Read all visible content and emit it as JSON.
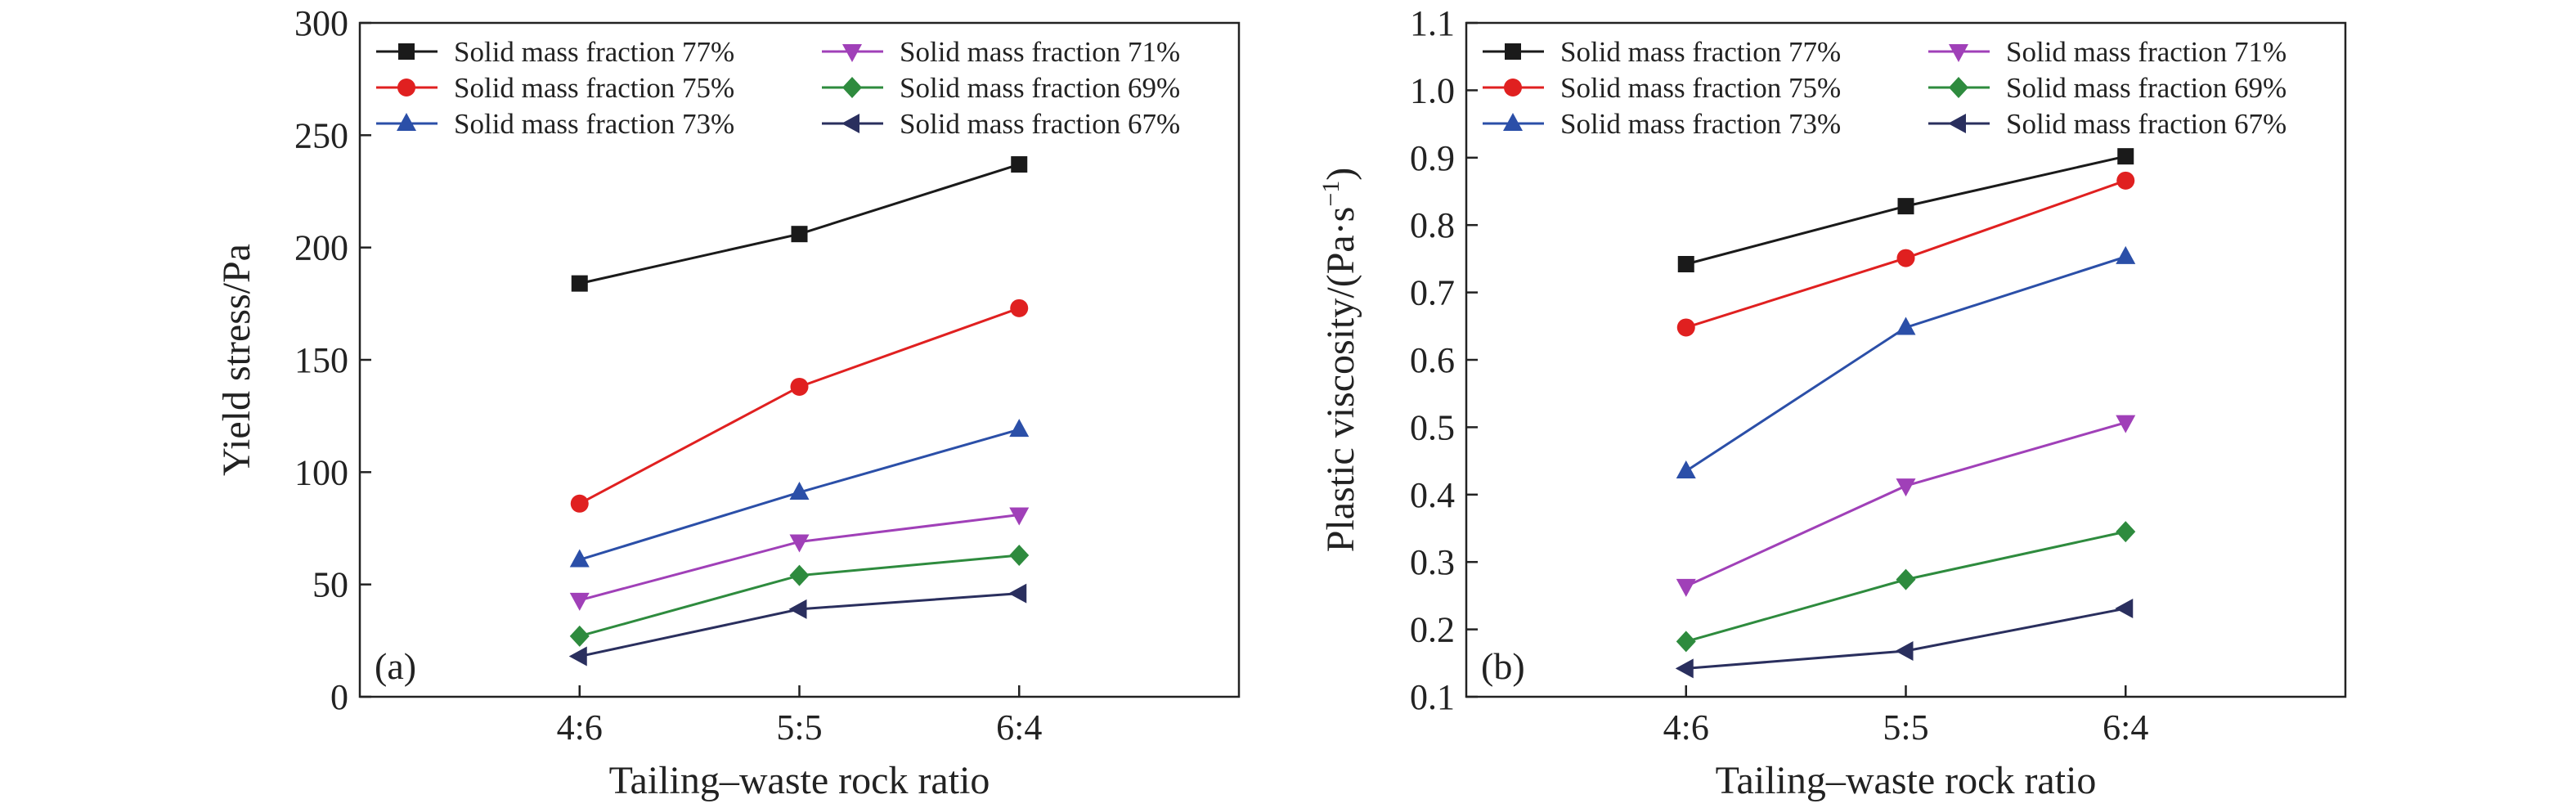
{
  "chart_data": [
    {
      "type": "line",
      "panel_label": "(a)",
      "xlabel": "Tailing–waste rock ratio",
      "ylabel": "Yield stress/Pa",
      "categories": [
        "4:6",
        "5:5",
        "6:4"
      ],
      "ylim": [
        0,
        300
      ],
      "yticks": [
        0,
        50,
        100,
        150,
        200,
        250,
        300
      ],
      "ytick_labels": [
        "0",
        "50",
        "100",
        "150",
        "200",
        "250",
        "300"
      ],
      "grid": false,
      "legend_position": "top",
      "series": [
        {
          "name": "Solid mass fraction 77%",
          "values": [
            184,
            206,
            237
          ],
          "color": "#1a1a1a",
          "marker": "square"
        },
        {
          "name": "Solid mass fraction 75%",
          "values": [
            86,
            138,
            173
          ],
          "color": "#e02020",
          "marker": "circle"
        },
        {
          "name": "Solid mass fraction 73%",
          "values": [
            61,
            91,
            119
          ],
          "color": "#2b4fa8",
          "marker": "triangle-up"
        },
        {
          "name": "Solid mass fraction 71%",
          "values": [
            43,
            69,
            81
          ],
          "color": "#a040b8",
          "marker": "triangle-down"
        },
        {
          "name": "Solid mass fraction 69%",
          "values": [
            27,
            54,
            63
          ],
          "color": "#2e8b3e",
          "marker": "diamond"
        },
        {
          "name": "Solid mass fraction 67%",
          "values": [
            18,
            39,
            46
          ],
          "color": "#2a2f5e",
          "marker": "triangle-left"
        }
      ]
    },
    {
      "type": "line",
      "panel_label": "(b)",
      "xlabel": "Tailing–waste rock ratio",
      "ylabel": "Plastic viscosity/(Pa·s",
      "ylabel_sup": "−1",
      "ylabel_end": ")",
      "categories": [
        "4:6",
        "5:5",
        "6:4"
      ],
      "ylim": [
        0.1,
        1.1
      ],
      "yticks": [
        0.1,
        0.2,
        0.3,
        0.4,
        0.5,
        0.6,
        0.7,
        0.8,
        0.9,
        1.0,
        1.1
      ],
      "ytick_labels": [
        "0.1",
        "0.2",
        "0.3",
        "0.4",
        "0.5",
        "0.6",
        "0.7",
        "0.8",
        "0.9",
        "1.0",
        "1.1"
      ],
      "grid": false,
      "legend_position": "top",
      "series": [
        {
          "name": "Solid mass fraction 77%",
          "values": [
            0.742,
            0.828,
            0.902
          ],
          "color": "#1a1a1a",
          "marker": "square"
        },
        {
          "name": "Solid mass fraction 75%",
          "values": [
            0.648,
            0.751,
            0.866
          ],
          "color": "#e02020",
          "marker": "circle"
        },
        {
          "name": "Solid mass fraction 73%",
          "values": [
            0.435,
            0.648,
            0.753
          ],
          "color": "#2b4fa8",
          "marker": "triangle-up"
        },
        {
          "name": "Solid mass fraction 71%",
          "values": [
            0.264,
            0.413,
            0.507
          ],
          "color": "#a040b8",
          "marker": "triangle-down"
        },
        {
          "name": "Solid mass fraction 69%",
          "values": [
            0.182,
            0.274,
            0.345
          ],
          "color": "#2e8b3e",
          "marker": "diamond"
        },
        {
          "name": "Solid mass fraction 67%",
          "values": [
            0.142,
            0.168,
            0.231
          ],
          "color": "#2a2f5e",
          "marker": "triangle-left"
        }
      ]
    }
  ]
}
